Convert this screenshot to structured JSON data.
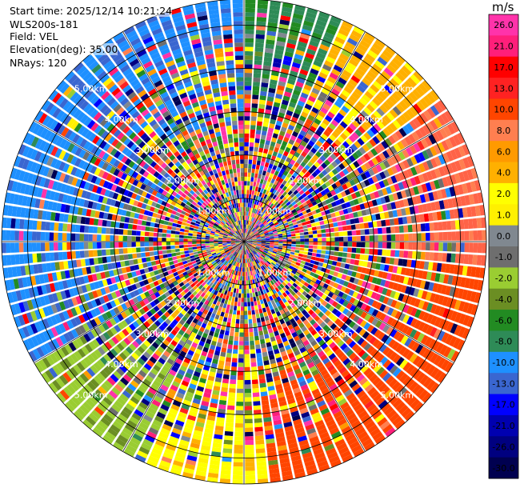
{
  "header": {
    "start_time": "Start time: 2025/12/14 10:21:24",
    "instrument": "WLS200s-181",
    "field": "Field: VEL",
    "elevation": "Elevation(deg): 35.00",
    "nrays": "NRays: 120"
  },
  "chart_data": {
    "type": "heatmap",
    "subtype": "polar-ppi",
    "n_rays": 120,
    "range_rings_km": [
      1,
      2,
      3,
      4,
      5
    ],
    "range_ring_labels": [
      "1.00km",
      "2.00km",
      "3.00km",
      "4.00km",
      "5.00km"
    ],
    "max_range_km": 5.6,
    "unit": "m/s",
    "colorbar": {
      "ticks": [
        "26.0",
        "21.0",
        "17.0",
        "13.0",
        "10.0",
        "8.0",
        "6.0",
        "4.0",
        "2.0",
        "1.0",
        "0.0",
        "-1.0",
        "-2.0",
        "-4.0",
        "-6.0",
        "-8.0",
        "-10.0",
        "-13.0",
        "-17.0",
        "-21.0",
        "-26.0",
        "-30.0"
      ],
      "colors": [
        "#ff33aa",
        "#ff1f7a",
        "#ff0000",
        "#ff2222",
        "#ff4500",
        "#ff7f50",
        "#ff9a00",
        "#ffb000",
        "#ffff00",
        "#fff000",
        "#808890",
        "#6e6e6e",
        "#9acd32",
        "#6b8e23",
        "#228b22",
        "#2e8b57",
        "#1e90ff",
        "#3a66d0",
        "#0000ff",
        "#0000b0",
        "#000080",
        "#000050"
      ]
    },
    "sectors": [
      {
        "from_deg": 0,
        "to_deg": 25,
        "near_color": "#228b22",
        "far_color": "#2e8b57"
      },
      {
        "from_deg": 25,
        "to_deg": 55,
        "near_color": "#ffff00",
        "far_color": "#ffb000"
      },
      {
        "from_deg": 55,
        "to_deg": 95,
        "near_color": "#ff7f50",
        "far_color": "#ff6347"
      },
      {
        "from_deg": 95,
        "to_deg": 175,
        "near_color": "#ff4500",
        "far_color": "#ff4500"
      },
      {
        "from_deg": 175,
        "to_deg": 205,
        "near_color": "#ffb000",
        "far_color": "#ffff00"
      },
      {
        "from_deg": 205,
        "to_deg": 240,
        "near_color": "#6b8e23",
        "far_color": "#9acd32"
      },
      {
        "from_deg": 240,
        "to_deg": 285,
        "near_color": "#3a66d0",
        "far_color": "#1e90ff"
      },
      {
        "from_deg": 285,
        "to_deg": 360,
        "near_color": "#3a66d0",
        "far_color": "#1e90ff"
      }
    ]
  }
}
